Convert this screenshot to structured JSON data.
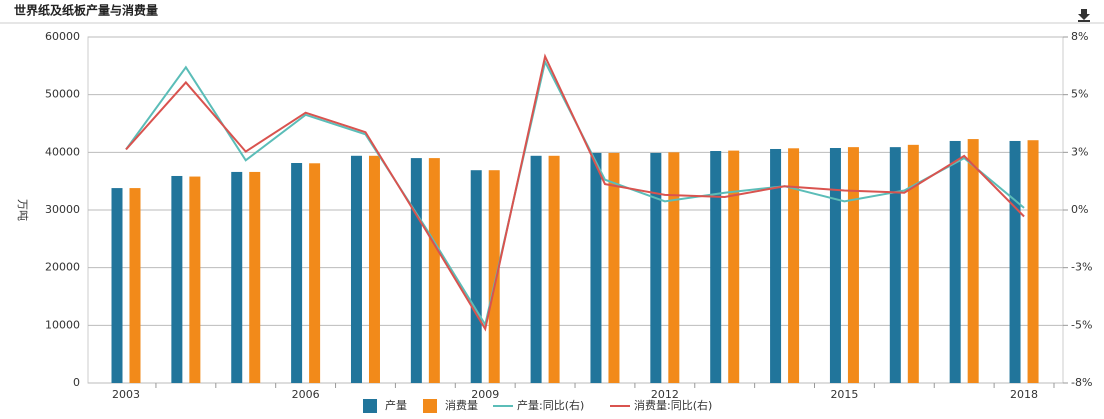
{
  "chart_data": {
    "type": "bar-line",
    "title": "世界纸及纸板产量与消费量",
    "ylabel": "万吨",
    "categories": [
      "2003",
      null,
      null,
      "2006",
      null,
      null,
      "2009",
      null,
      null,
      "2012",
      null,
      null,
      "2015",
      null,
      null,
      "2018"
    ],
    "series": [
      {
        "name": "产量",
        "type": "bar",
        "color": "#21759b",
        "values": [
          33800,
          35900,
          36600,
          38150,
          39400,
          39000,
          36900,
          39400,
          39900,
          39900,
          40230,
          40580,
          40750,
          40900,
          41970,
          41970
        ]
      },
      {
        "name": "消费量",
        "type": "bar",
        "color": "#f28a1a",
        "values": [
          33800,
          35800,
          36600,
          38100,
          39400,
          39000,
          36900,
          39400,
          39900,
          40000,
          40300,
          40700,
          40900,
          41300,
          42300,
          42100
        ]
      },
      {
        "name": "产量:同比(右)",
        "type": "line",
        "axis": "y2",
        "color": "#5bbdb8",
        "values": [
          2.8,
          6.6,
          2.3,
          4.4,
          3.5,
          -0.8,
          -5.3,
          6.85,
          1.4,
          0.4,
          0.8,
          1.1,
          0.4,
          0.9,
          2.4,
          0.1
        ]
      },
      {
        "name": "消费量:同比(右)",
        "type": "line",
        "axis": "y2",
        "color": "#d9534f",
        "values": [
          2.8,
          5.9,
          2.7,
          4.5,
          3.6,
          -0.9,
          -5.5,
          7.1,
          1.2,
          0.7,
          0.6,
          1.1,
          0.9,
          0.8,
          2.5,
          -0.3
        ]
      }
    ],
    "ylim": [
      0,
      60000
    ],
    "yticks": [
      0,
      10000,
      20000,
      30000,
      40000,
      50000,
      60000
    ],
    "y2lim": [
      -8,
      8
    ],
    "y2ticks": [
      {
        "value": -8,
        "label": "-8%"
      },
      {
        "value": -5.333,
        "label": "-5%"
      },
      {
        "value": -2.667,
        "label": "-3%"
      },
      {
        "value": 0,
        "label": "0%"
      },
      {
        "value": 2.667,
        "label": "3%"
      },
      {
        "value": 5.333,
        "label": "5%"
      },
      {
        "value": 8,
        "label": "8%"
      }
    ],
    "grid": true,
    "legend": "bottom"
  }
}
